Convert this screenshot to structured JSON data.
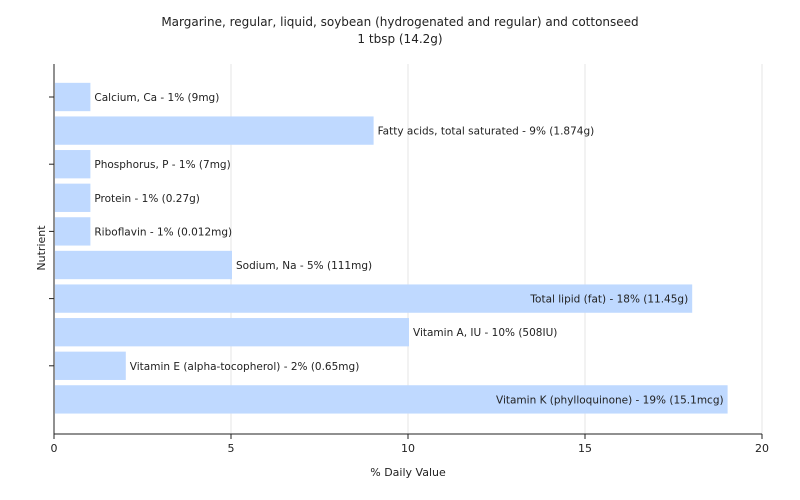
{
  "chart_data": {
    "type": "bar",
    "orientation": "horizontal",
    "title": "Margarine, regular, liquid, soybean (hydrogenated and regular) and cottonseed",
    "subtitle": "1 tbsp (14.2g)",
    "xlabel": "% Daily Value",
    "ylabel": "Nutrient",
    "xlim": [
      0,
      20
    ],
    "xticks": [
      "0",
      "5",
      "10",
      "15",
      "20"
    ],
    "grid": true,
    "categories": [
      "Calcium, Ca",
      "Fatty acids, total saturated",
      "Phosphorus, P",
      "Protein",
      "Riboflavin",
      "Sodium, Na",
      "Total lipid (fat)",
      "Vitamin A, IU",
      "Vitamin E (alpha-tocopherol)",
      "Vitamin K (phylloquinone)"
    ],
    "values": [
      1,
      9,
      1,
      1,
      1,
      5,
      18,
      10,
      2,
      19
    ],
    "data_labels": [
      "Calcium, Ca - 1% (9mg)",
      "Fatty acids, total saturated - 9% (1.874g)",
      "Phosphorus, P - 1% (7mg)",
      "Protein - 1% (0.27g)",
      "Riboflavin - 1% (0.012mg)",
      "Sodium, Na - 5% (111mg)",
      "Total lipid (fat) - 18% (11.45g)",
      "Vitamin A, IU - 10% (508IU)",
      "Vitamin E (alpha-tocopherol) - 2% (0.65mg)",
      "Vitamin K (phylloquinone) - 19% (15.1mcg)"
    ],
    "bar_color": "#bfd9ff",
    "grid_color": "#e6e6e6",
    "axis_color": "#222222"
  }
}
